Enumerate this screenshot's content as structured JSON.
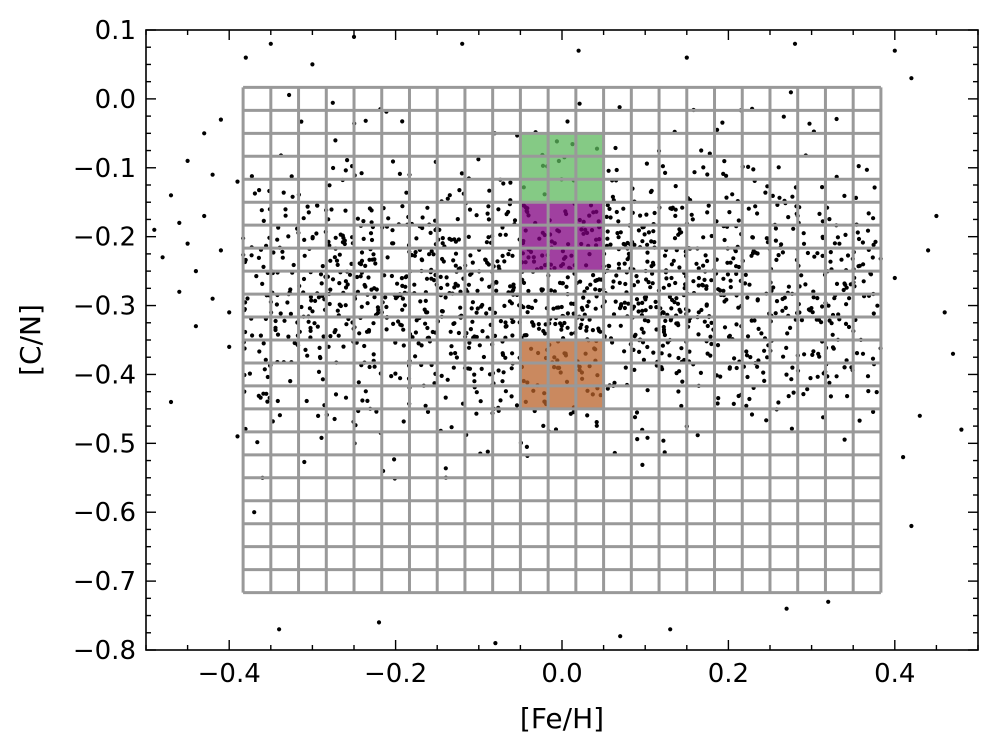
{
  "chart_data": {
    "type": "scatter",
    "title": "",
    "xlabel": "[Fe/H]",
    "ylabel": "[C/N]",
    "xlim": [
      -0.5,
      0.5
    ],
    "ylim": [
      -0.8,
      0.1
    ],
    "x_ticks": [
      -0.4,
      -0.2,
      0.0,
      0.2,
      0.4
    ],
    "x_tick_labels": [
      "−0.4",
      "−0.2",
      "0.0",
      "0.2",
      "0.4"
    ],
    "y_ticks": [
      0.1,
      0.0,
      -0.1,
      -0.2,
      -0.3,
      -0.4,
      -0.5,
      -0.6,
      -0.7,
      -0.8
    ],
    "y_tick_labels": [
      "0.1",
      "0.0",
      "−0.1",
      "−0.2",
      "−0.3",
      "−0.4",
      "−0.5",
      "−0.6",
      "−0.7",
      "−0.8"
    ],
    "grid_overlay": {
      "x_range": [
        -0.3833,
        0.3833
      ],
      "y_range": [
        -0.7167,
        0.0167
      ],
      "cell_size": 0.0333,
      "color": "#999999"
    },
    "highlighted_regions": [
      {
        "color": "#5cb85c",
        "x_range": [
          -0.05,
          0.05
        ],
        "y_range": [
          -0.15,
          -0.05
        ]
      },
      {
        "color": "#800080",
        "x_range": [
          -0.05,
          0.05
        ],
        "y_range": [
          -0.25,
          -0.15
        ]
      },
      {
        "color": "#b8622a",
        "x_range": [
          -0.05,
          0.05
        ],
        "y_range": [
          -0.45,
          -0.35
        ]
      }
    ],
    "series": [
      {
        "marker": "dot",
        "color": "#000000",
        "points": [
          [
            -0.47,
            -0.14
          ],
          [
            -0.46,
            -0.18
          ],
          [
            -0.45,
            -0.21
          ],
          [
            -0.44,
            -0.25
          ],
          [
            -0.43,
            -0.17
          ],
          [
            -0.42,
            -0.29
          ],
          [
            -0.41,
            -0.22
          ],
          [
            -0.4,
            -0.31
          ],
          [
            -0.39,
            -0.12
          ],
          [
            -0.48,
            -0.23
          ],
          [
            -0.46,
            -0.28
          ],
          [
            -0.44,
            -0.33
          ],
          [
            -0.42,
            -0.11
          ],
          [
            -0.4,
            -0.36
          ],
          [
            -0.47,
            -0.44
          ],
          [
            -0.45,
            -0.09
          ],
          [
            -0.49,
            -0.19
          ],
          [
            -0.43,
            -0.05
          ],
          [
            -0.41,
            -0.03
          ],
          [
            -0.38,
            0.06
          ],
          [
            -0.35,
            0.08
          ],
          [
            -0.3,
            0.05
          ],
          [
            -0.25,
            0.09
          ],
          [
            -0.12,
            0.08
          ],
          [
            0.02,
            0.07
          ],
          [
            0.15,
            0.06
          ],
          [
            0.28,
            0.08
          ],
          [
            0.4,
            0.07
          ],
          [
            0.42,
            0.03
          ],
          [
            0.44,
            -0.22
          ],
          [
            0.46,
            -0.31
          ],
          [
            0.47,
            -0.37
          ],
          [
            0.43,
            -0.46
          ],
          [
            0.41,
            -0.52
          ],
          [
            0.48,
            -0.48
          ],
          [
            0.45,
            -0.17
          ],
          [
            0.4,
            -0.26
          ],
          [
            0.42,
            -0.62
          ],
          [
            -0.34,
            -0.77
          ],
          [
            -0.22,
            -0.76
          ],
          [
            -0.08,
            -0.79
          ],
          [
            0.07,
            -0.78
          ],
          [
            0.13,
            -0.77
          ],
          [
            0.27,
            -0.74
          ],
          [
            0.32,
            -0.73
          ],
          [
            -0.37,
            -0.6
          ],
          [
            -0.39,
            -0.49
          ],
          [
            -0.36,
            -0.55
          ]
        ]
      }
    ]
  }
}
